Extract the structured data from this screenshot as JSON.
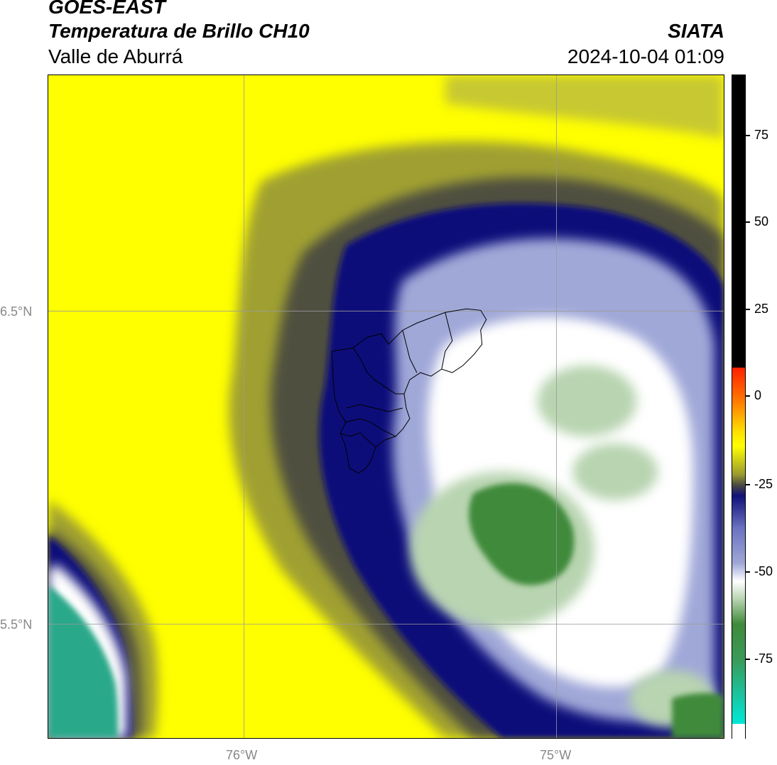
{
  "header": {
    "source": "GOES-EAST",
    "product": "Temperatura de Brillo CH10",
    "region": "Valle de Aburrá",
    "organization": "SIATA",
    "timestamp": "2024-10-04 01:09"
  },
  "map": {
    "lat_labels": [
      "6.5°N",
      "5.5°N"
    ],
    "lon_labels": [
      "76°W",
      "75°W"
    ],
    "colors": {
      "warm_yellow": "#ffff00",
      "olive": "#a0a030",
      "dark_olive": "#505040",
      "navy": "#10107a",
      "lavender": "#a0a8d8",
      "white": "#ffffff",
      "light_green": "#b8d4b0",
      "green": "#3f8a3a",
      "teal": "#2aa88a"
    }
  },
  "colorbar": {
    "labels": [
      "75",
      "50",
      "25",
      "0",
      "-25",
      "-50",
      "-75"
    ],
    "stops": [
      {
        "color": "#000000"
      },
      {
        "color": "#ff2000"
      },
      {
        "color": "#ff8000"
      },
      {
        "color": "#ffe000"
      },
      {
        "color": "#ffff00"
      },
      {
        "color": "#9a9a30"
      },
      {
        "color": "#10107a"
      },
      {
        "color": "#a0a8d8"
      },
      {
        "color": "#ffffff"
      },
      {
        "color": "#3f8a3a"
      },
      {
        "color": "#00e8d8"
      },
      {
        "color": "#ffffff"
      }
    ]
  }
}
